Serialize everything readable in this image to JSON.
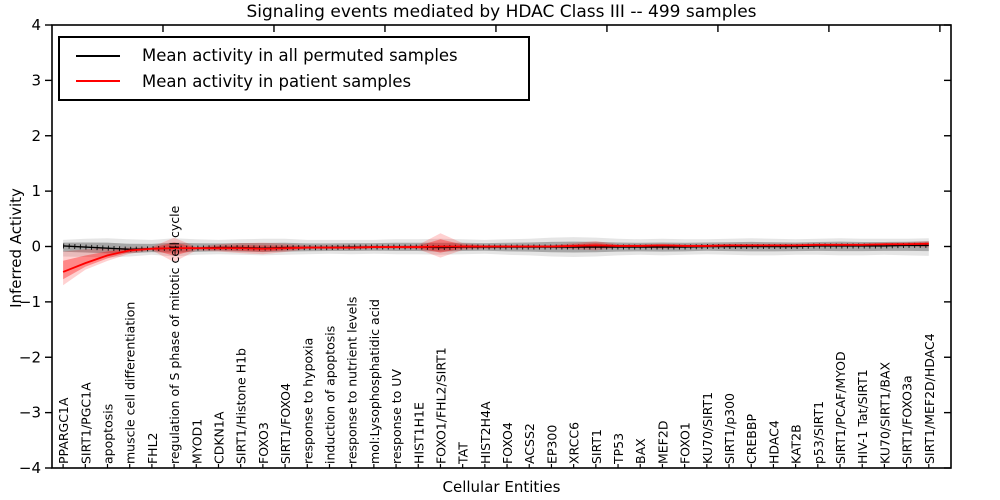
{
  "figure": {
    "title": "Signaling events mediated by HDAC Class III -- 499 samples",
    "xlabel": "Cellular Entities",
    "ylabel": "Inferred Activity"
  },
  "legend": {
    "entries": [
      {
        "label": "Mean activity in all permuted samples",
        "color": "#000000"
      },
      {
        "label": "Mean activity in patient samples",
        "color": "#ff0000"
      }
    ]
  },
  "chart_data": {
    "type": "line",
    "title": "Signaling events mediated by HDAC Class III -- 499 samples",
    "xlabel": "Cellular Entities",
    "ylabel": "Inferred Activity",
    "ylim": [
      -4,
      4
    ],
    "yticks": [
      4,
      3,
      2,
      1,
      0,
      -1,
      -2,
      -3,
      -4
    ],
    "top_axis_ticks": [
      5,
      10,
      15,
      20,
      25,
      30,
      35,
      40
    ],
    "grid": false,
    "legend_position": "upper left",
    "categories": [
      "PPARGC1A",
      "SIRT1/PGC1A",
      "apoptosis",
      "muscle cell differentiation",
      "FHL2",
      "regulation of S phase of mitotic cell cycle",
      "MYOD1",
      "CDKN1A",
      "SIRT1/Histone H1b",
      "FOXO3",
      "SIRT1/FOXO4",
      "response to hypoxia",
      "induction of apoptosis",
      "response to nutrient levels",
      "mol:Lysophosphatidic acid",
      "response to UV",
      "HIST1H1E",
      "FOXO1/FHL2/SIRT1",
      "TAT",
      "HIST2H4A",
      "FOXO4",
      "ACSS2",
      "EP300",
      "XRCC6",
      "SIRT1",
      "TP53",
      "BAX",
      "MEF2D",
      "FOXO1",
      "KU70/SIRT1",
      "SIRT1/p300",
      "CREBBP",
      "HDAC4",
      "KAT2B",
      "p53/SIRT1",
      "SIRT1/PCAF/MYOD",
      "HIV-1 Tat/SIRT1",
      "KU70/SIRT1/BAX",
      "SIRT1/FOXO3a",
      "SIRT1/MEF2D/HDAC4"
    ],
    "series": [
      {
        "name": "Mean activity in all permuted samples",
        "color": "#000000",
        "values": [
          0.01,
          -0.01,
          -0.03,
          -0.05,
          -0.04,
          -0.03,
          -0.03,
          -0.02,
          -0.02,
          -0.03,
          -0.02,
          -0.02,
          -0.02,
          -0.01,
          -0.01,
          -0.01,
          -0.01,
          -0.02,
          -0.01,
          -0.01,
          -0.01,
          -0.01,
          -0.01,
          -0.01,
          -0.01,
          -0.01,
          -0.01,
          -0.01,
          -0.01,
          0.0,
          0.0,
          0.0,
          0.0,
          0.0,
          0.01,
          0.01,
          0.01,
          0.01,
          0.02,
          0.02
        ]
      },
      {
        "name": "Mean activity in patient samples",
        "color": "#ff0000",
        "values": [
          -0.46,
          -0.3,
          -0.16,
          -0.07,
          -0.04,
          -0.03,
          -0.03,
          -0.03,
          -0.03,
          -0.04,
          -0.03,
          -0.02,
          -0.02,
          -0.02,
          -0.01,
          -0.01,
          -0.01,
          0.0,
          0.0,
          0.0,
          0.0,
          0.0,
          0.0,
          0.01,
          0.02,
          0.01,
          0.01,
          0.02,
          0.01,
          0.01,
          0.02,
          0.02,
          0.02,
          0.02,
          0.03,
          0.03,
          0.03,
          0.04,
          0.04,
          0.05
        ]
      }
    ],
    "bands": [
      {
        "name": "permuted-samples-range",
        "color": "#000000",
        "alpha": 0.1,
        "upper": [
          0.12,
          0.14,
          0.15,
          0.13,
          0.12,
          0.15,
          0.13,
          0.12,
          0.13,
          0.14,
          0.14,
          0.12,
          0.12,
          0.12,
          0.12,
          0.13,
          0.13,
          0.14,
          0.13,
          0.12,
          0.13,
          0.14,
          0.16,
          0.17,
          0.16,
          0.14,
          0.13,
          0.14,
          0.13,
          0.13,
          0.14,
          0.15,
          0.14,
          0.13,
          0.14,
          0.15,
          0.14,
          0.14,
          0.14,
          0.15
        ],
        "lower": [
          -0.18,
          -0.19,
          -0.2,
          -0.18,
          -0.15,
          -0.18,
          -0.15,
          -0.14,
          -0.15,
          -0.16,
          -0.15,
          -0.14,
          -0.13,
          -0.14,
          -0.13,
          -0.14,
          -0.14,
          -0.15,
          -0.14,
          -0.13,
          -0.15,
          -0.16,
          -0.18,
          -0.19,
          -0.18,
          -0.16,
          -0.15,
          -0.16,
          -0.15,
          -0.14,
          -0.15,
          -0.16,
          -0.16,
          -0.15,
          -0.15,
          -0.16,
          -0.16,
          -0.15,
          -0.16,
          -0.17
        ]
      },
      {
        "name": "patient-samples-range",
        "color": "#ff0000",
        "alpha": 0.18,
        "upper": [
          -0.09,
          -0.05,
          -0.03,
          -0.02,
          -0.01,
          0.16,
          -0.01,
          0.04,
          0.06,
          0.07,
          0.05,
          0.02,
          0.02,
          0.02,
          0.02,
          0.02,
          0.03,
          0.24,
          0.06,
          0.03,
          0.03,
          0.03,
          0.03,
          0.06,
          0.1,
          0.04,
          0.04,
          0.05,
          0.04,
          0.04,
          0.05,
          0.05,
          0.05,
          0.05,
          0.06,
          0.06,
          0.06,
          0.07,
          0.08,
          0.1
        ],
        "lower": [
          -0.7,
          -0.42,
          -0.26,
          -0.13,
          -0.07,
          -0.28,
          -0.07,
          -0.09,
          -0.12,
          -0.14,
          -0.1,
          -0.05,
          -0.05,
          -0.05,
          -0.04,
          -0.04,
          -0.05,
          -0.2,
          -0.06,
          -0.04,
          -0.03,
          -0.03,
          -0.03,
          -0.05,
          -0.07,
          -0.02,
          -0.02,
          -0.04,
          -0.02,
          -0.02,
          -0.01,
          -0.01,
          -0.01,
          -0.01,
          0.0,
          0.0,
          0.0,
          0.01,
          0.01,
          -0.02
        ]
      }
    ]
  }
}
